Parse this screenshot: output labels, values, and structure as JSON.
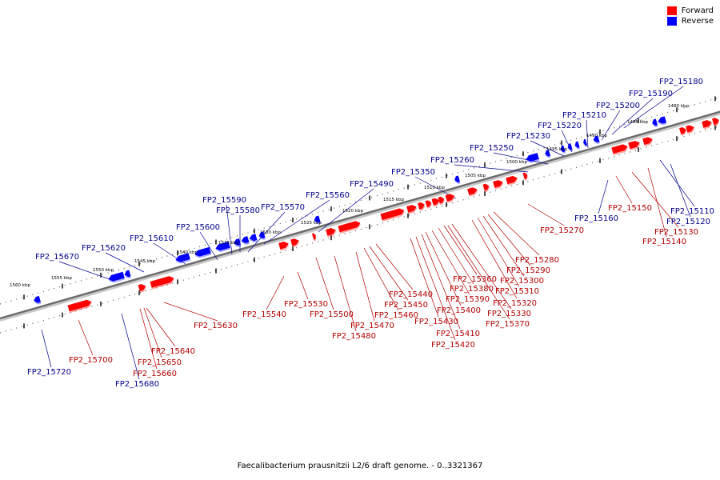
{
  "legend": {
    "forward_label": "Forward",
    "reverse_label": "Reverse",
    "forward_color": "#ff0000",
    "reverse_color": "#0000ff"
  },
  "caption": "Faecalibacterium prausnitzii L2/6 draft genome. - 0..3321367",
  "ticks": [
    "1480 kbp",
    "1485 kbp",
    "1490 kbp",
    "1495 kbp",
    "1500 kbp",
    "1505 kbp",
    "1510 kbp",
    "1515 kbp",
    "1520 kbp",
    "1525 kbp",
    "1530 kbp",
    "1535 kbp",
    "1540 kbp",
    "1545 kbp",
    "1550 kbp",
    "1555 kbp",
    "1560 kbp"
  ],
  "reverse_labels": [
    "FP2_15180",
    "FP2_15190",
    "FP2_15200",
    "FP2_15210",
    "FP2_15220",
    "FP2_15230",
    "FP2_15250",
    "FP2_15260",
    "FP2_15350",
    "FP2_15490",
    "FP2_15560",
    "FP2_15570",
    "FP2_15580",
    "FP2_15590",
    "FP2_15600",
    "FP2_15610",
    "FP2_15620",
    "FP2_15670",
    "FP2_15720",
    "FP2_15680",
    "FP2_15160",
    "FP2_15110",
    "FP2_15120"
  ],
  "forward_labels": [
    "FP2_15150",
    "FP2_15130",
    "FP2_15140",
    "FP2_15270",
    "FP2_15280",
    "FP2_15290",
    "FP2_15300",
    "FP2_15310",
    "FP2_15320",
    "FP2_15330",
    "FP2_15360",
    "FP2_15380",
    "FP2_15390",
    "FP2_15400",
    "FP2_15370",
    "FP2_15410",
    "FP2_15420",
    "FP2_15430",
    "FP2_15440",
    "FP2_15450",
    "FP2_15460",
    "FP2_15470",
    "FP2_15480",
    "FP2_15500",
    "FP2_15530",
    "FP2_15540",
    "FP2_15630",
    "FP2_15640",
    "FP2_15650",
    "FP2_15660",
    "FP2_15700"
  ]
}
